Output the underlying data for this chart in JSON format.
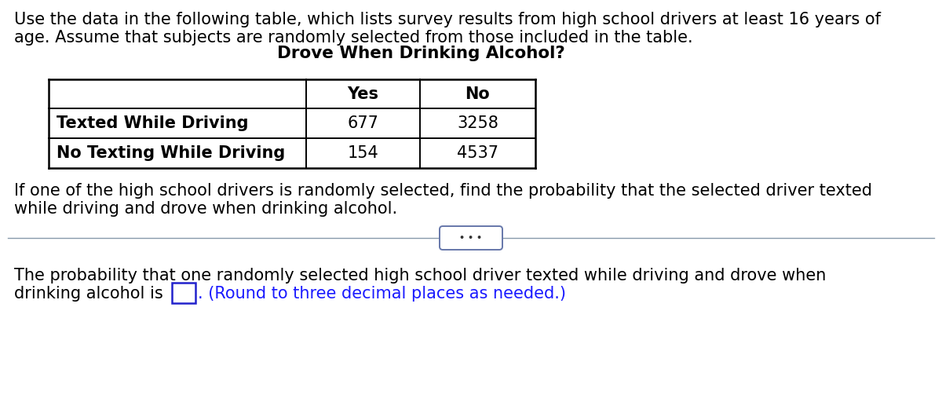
{
  "intro_line1": "Use the data in the following table, which lists survey results from high school drivers at least 16 years of",
  "intro_line2": "age. Assume that subjects are randomly selected from those included in the table.",
  "table_header": "Drove When Drinking Alcohol?",
  "col_headers": [
    "Yes",
    "No"
  ],
  "row_labels": [
    "Texted While Driving",
    "No Texting While Driving"
  ],
  "table_data": [
    [
      677,
      3258
    ],
    [
      154,
      4537
    ]
  ],
  "question_line1": "If one of the high school drivers is randomly selected, find the probability that the selected driver texted",
  "question_line2": "while driving and drove when drinking alcohol.",
  "answer_line1": "The probability that one randomly selected high school driver texted while driving and drove when",
  "answer_line2_before": "drinking alcohol is ",
  "answer_line2_after": ". (Round to three decimal places as needed.)",
  "answer_after_color": "#1a1aff",
  "divider_dots": "• • •",
  "bg_color": "#ffffff",
  "text_color": "#000000",
  "font_size_main": 15.0,
  "font_size_header": 15.5
}
